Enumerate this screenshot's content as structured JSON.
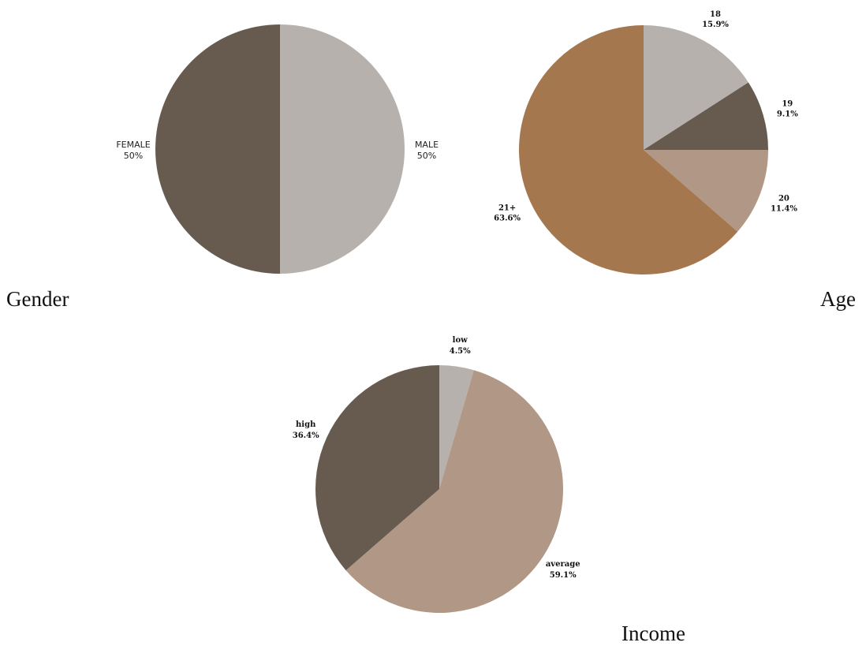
{
  "captions": {
    "gender": "Gender",
    "age": "Age",
    "income": "Income"
  },
  "colors": {
    "dark": "#675a4f",
    "light": "#b6b1ad",
    "tan": "#b19886",
    "brown": "#a4774e"
  },
  "chart_data": [
    {
      "id": "gender",
      "type": "pie",
      "title": "Gender",
      "slices": [
        {
          "label": "MALE",
          "value": 50,
          "pct_text": "50%",
          "color": "#b6b1ad"
        },
        {
          "label": "FEMALE",
          "value": 50,
          "pct_text": "50%",
          "color": "#675a4f"
        }
      ]
    },
    {
      "id": "age",
      "type": "pie",
      "title": "Age",
      "slices": [
        {
          "label": "18",
          "value": 15.9,
          "pct_text": "15.9%",
          "color": "#b6b1ad"
        },
        {
          "label": "19",
          "value": 9.1,
          "pct_text": "9.1%",
          "color": "#675a4f"
        },
        {
          "label": "20",
          "value": 11.4,
          "pct_text": "11.4%",
          "color": "#b19886"
        },
        {
          "label": "21+",
          "value": 63.6,
          "pct_text": "63.6%",
          "color": "#a4774e"
        }
      ]
    },
    {
      "id": "income",
      "type": "pie",
      "title": "Income",
      "slices": [
        {
          "label": "low",
          "value": 4.5,
          "pct_text": "4.5%",
          "color": "#b6b1ad"
        },
        {
          "label": "average",
          "value": 59.1,
          "pct_text": "59.1%",
          "color": "#b19886"
        },
        {
          "label": "high",
          "value": 36.4,
          "pct_text": "36.4%",
          "color": "#675a4f"
        }
      ]
    }
  ]
}
